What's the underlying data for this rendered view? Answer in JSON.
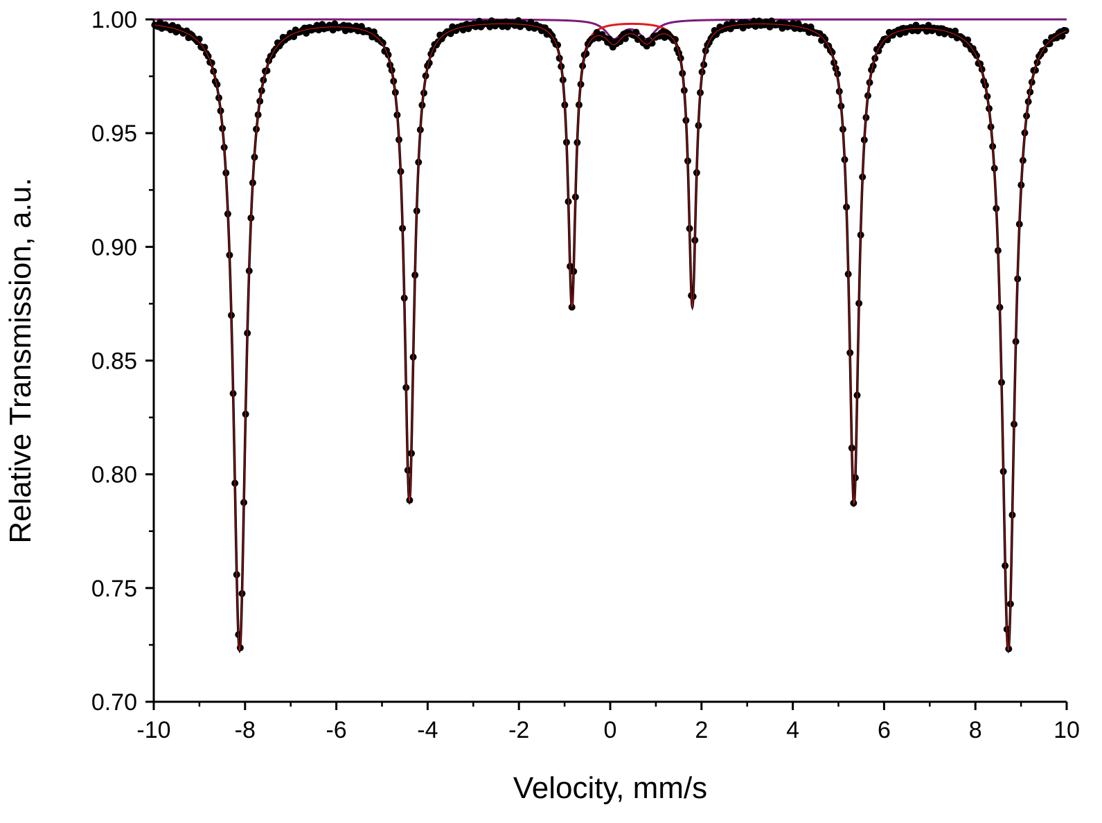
{
  "chart_data": {
    "type": "scatter",
    "title": "",
    "xlabel": "Velocity, mm/s",
    "ylabel": "Relative Transmission, a.u.",
    "xlim": [
      -10,
      10
    ],
    "ylim": [
      0.7,
      1.0
    ],
    "x_ticks": [
      -10,
      -8,
      -6,
      -4,
      -2,
      0,
      2,
      4,
      6,
      8,
      10
    ],
    "x_tick_labels": [
      "-10",
      "-8",
      "-6",
      "-4",
      "-2",
      "0",
      "2",
      "4",
      "6",
      "8",
      "10"
    ],
    "y_ticks": [
      0.7,
      0.75,
      0.8,
      0.85,
      0.9,
      0.95,
      1.0
    ],
    "y_tick_labels": [
      "0.70",
      "0.75",
      "0.80",
      "0.85",
      "0.90",
      "0.95",
      "1.00"
    ],
    "grid": false,
    "legend": "none",
    "sextet": {
      "lines": [
        {
          "center": -8.12,
          "depth": 0.277,
          "hwhm": 0.17
        },
        {
          "center": -4.4,
          "depth": 0.211,
          "hwhm": 0.13
        },
        {
          "center": -0.84,
          "depth": 0.125,
          "hwhm": 0.1
        },
        {
          "center": 1.8,
          "depth": 0.125,
          "hwhm": 0.1
        },
        {
          "center": 5.34,
          "depth": 0.212,
          "hwhm": 0.13
        },
        {
          "center": 8.72,
          "depth": 0.277,
          "hwhm": 0.17
        }
      ]
    },
    "doublet": {
      "lines": [
        {
          "center": 0.08,
          "depth": 0.008,
          "hwhm": 0.22
        },
        {
          "center": 0.8,
          "depth": 0.008,
          "hwhm": 0.22
        }
      ]
    },
    "series": [
      {
        "role": "experimental points",
        "color": "#000000",
        "marker": "circle"
      },
      {
        "role": "total fit",
        "color": "#000000"
      },
      {
        "role": "sextet subspectrum",
        "color": "#e31a1c"
      },
      {
        "role": "doublet subspectrum",
        "color": "#7a1a7a"
      }
    ]
  }
}
